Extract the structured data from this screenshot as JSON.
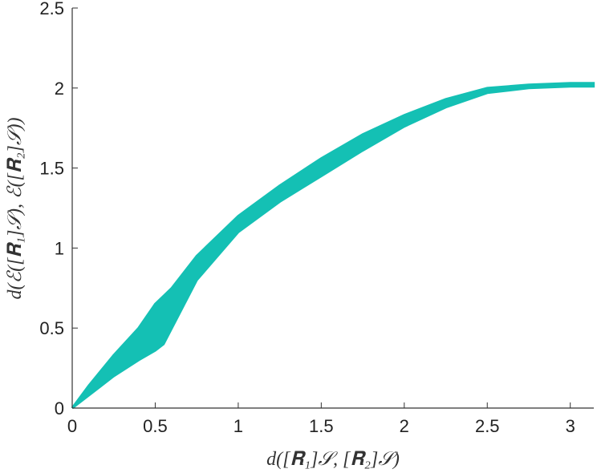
{
  "chart_data": {
    "type": "band",
    "xlabel": "d([𝐑₁]𝒮, [𝐑₂]𝒮)",
    "ylabel": "d(ℰ([𝐑₁]𝒮), ℰ([𝐑₂]𝒮))",
    "x": [
      0,
      0.1,
      0.25,
      0.4,
      0.5,
      0.55,
      0.6,
      0.75,
      1,
      1.25,
      1.5,
      1.75,
      2,
      2.25,
      2.5,
      2.75,
      3,
      3.14
    ],
    "series": [
      {
        "color": "#14c0b4",
        "values": [
          0,
          0.14,
          0.33,
          0.5,
          0.65,
          0.7,
          0.75,
          0.95,
          1.2,
          1.39,
          1.56,
          1.71,
          1.83,
          1.93,
          2.0,
          2.02,
          2.03,
          2.03
        ]
      },
      {
        "color": "#14c0b4",
        "values": [
          0,
          0.08,
          0.2,
          0.3,
          0.36,
          0.4,
          0.5,
          0.8,
          1.1,
          1.29,
          1.45,
          1.61,
          1.76,
          1.88,
          1.97,
          2.0,
          2.01,
          2.01
        ]
      }
    ],
    "xlim": [
      0,
      3.1416
    ],
    "ylim": [
      0,
      2.5
    ],
    "xticks": [
      0,
      0.5,
      1,
      1.5,
      2,
      2.5,
      3
    ],
    "yticks": [
      0,
      0.5,
      1,
      1.5,
      2,
      2.5
    ]
  }
}
